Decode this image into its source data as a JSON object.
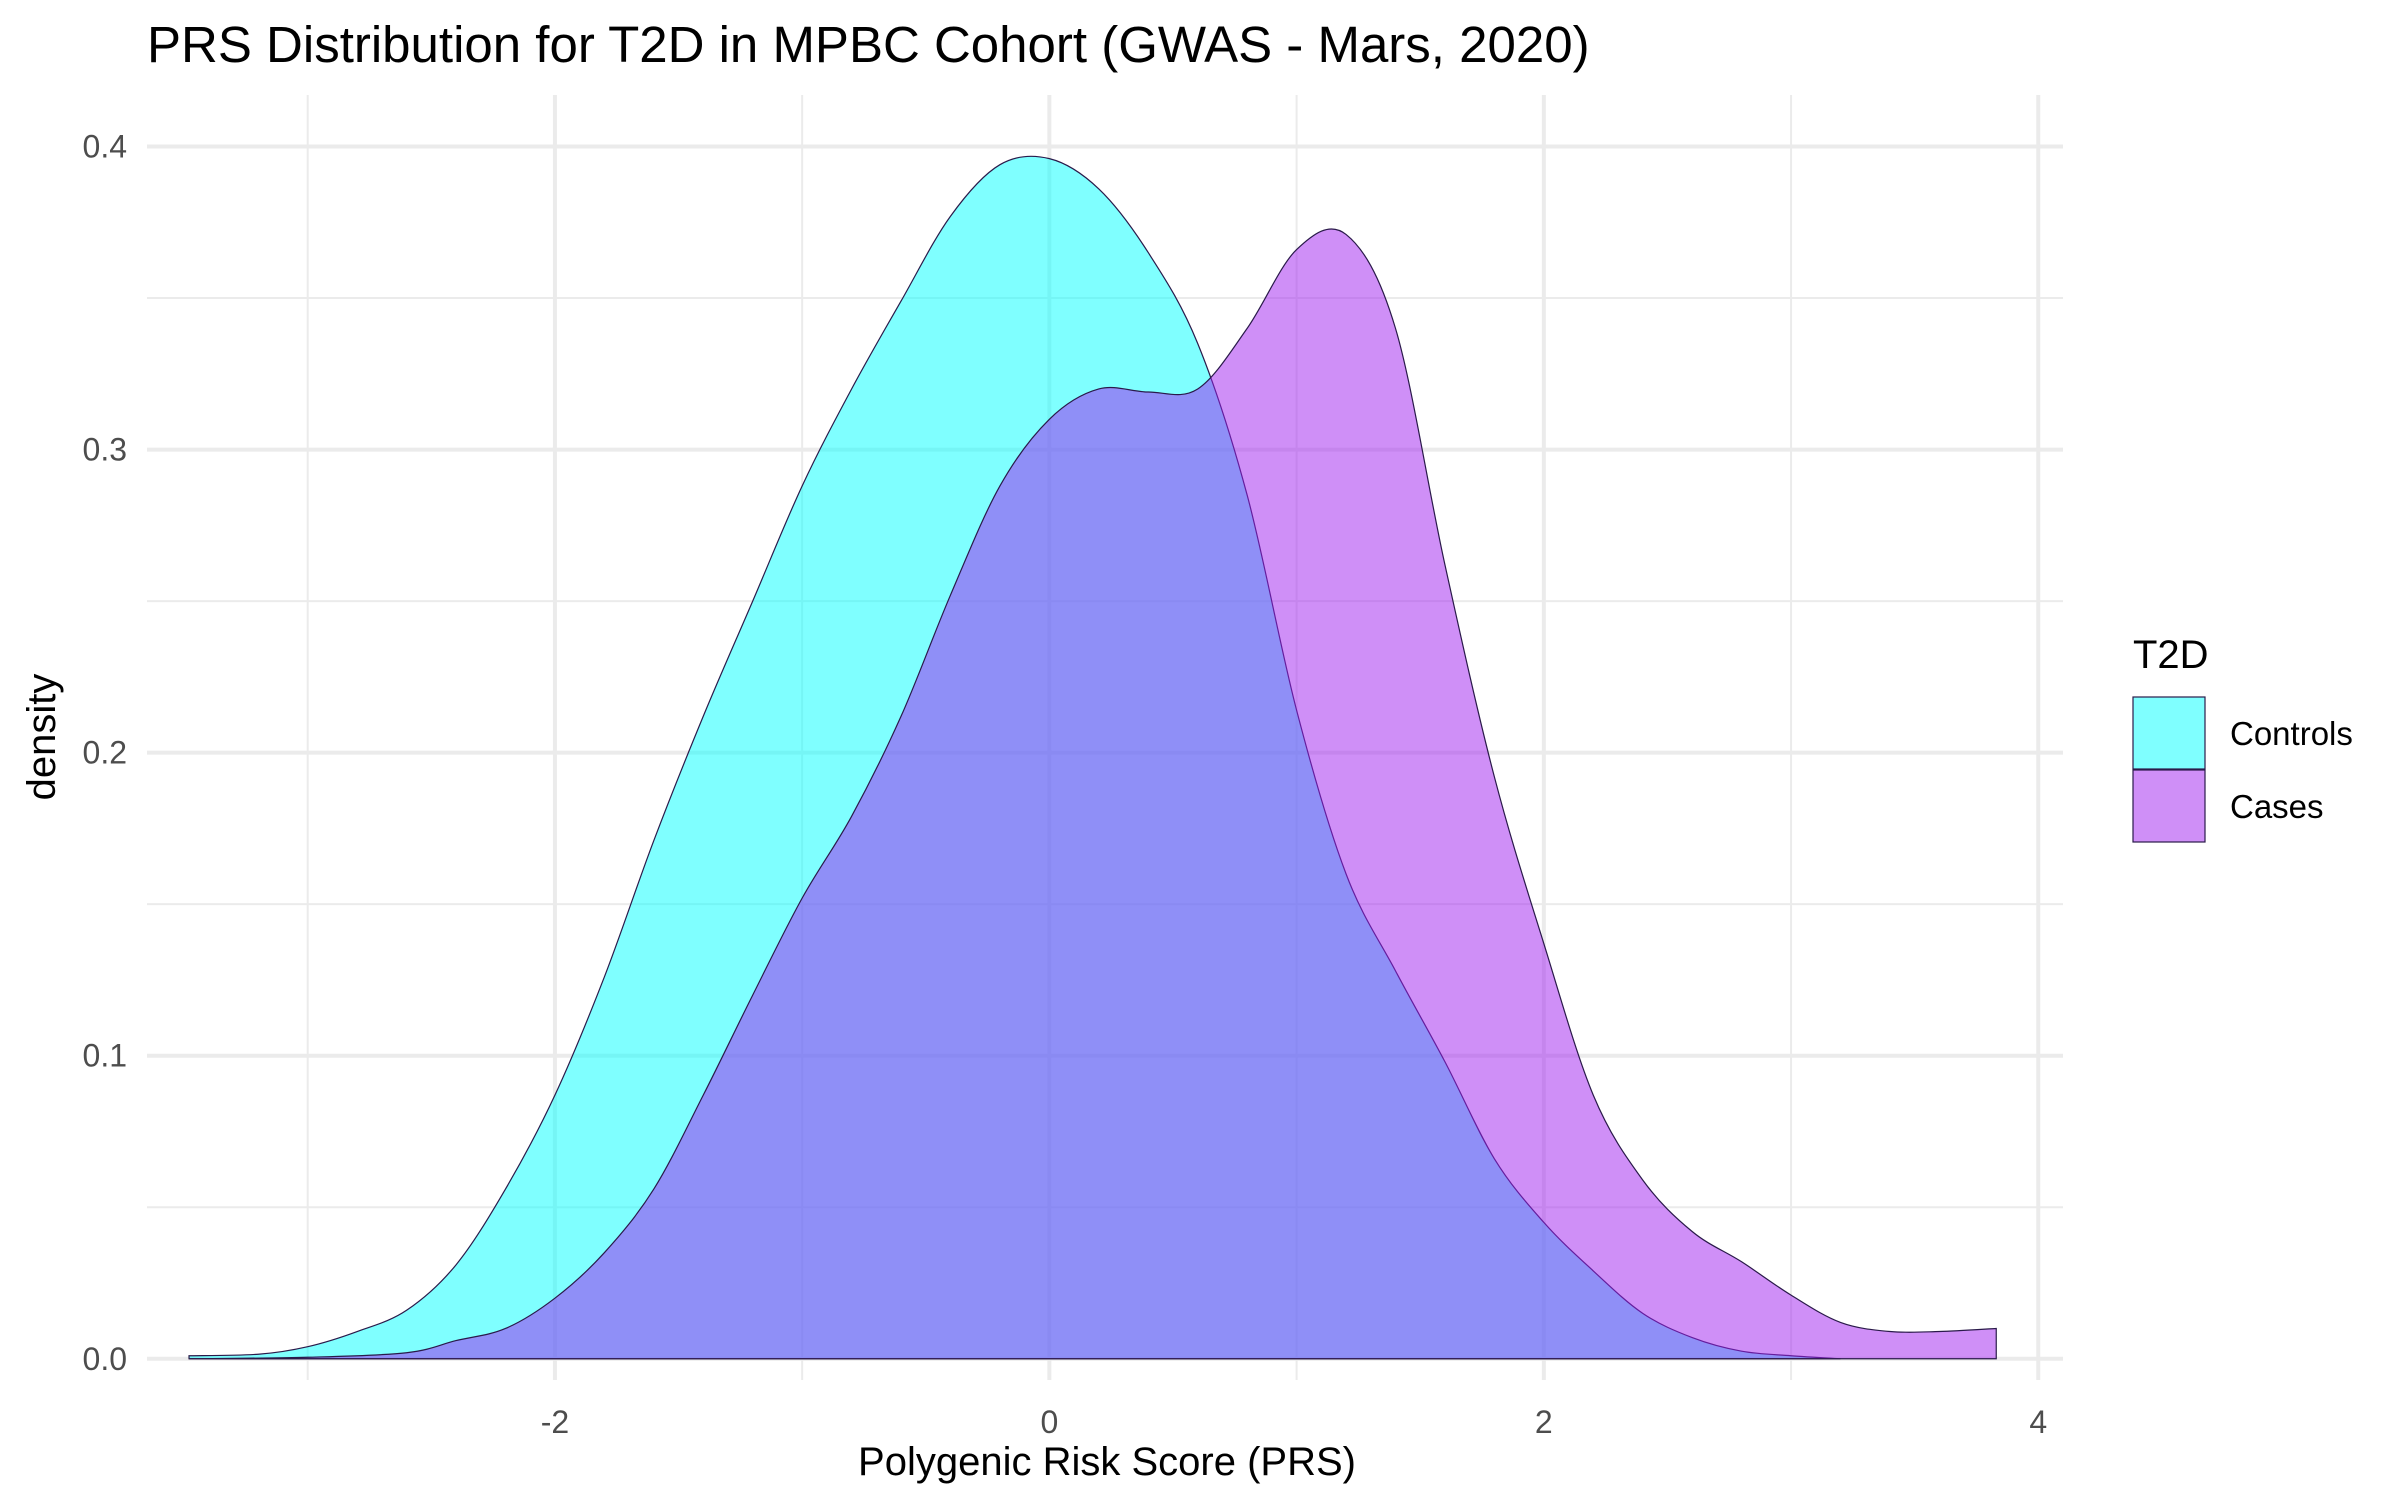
{
  "chart_data": {
    "type": "area",
    "subtype": "density",
    "title": "PRS Distribution for T2D in MPBC Cohort (GWAS - Mars, 2020)",
    "xlabel": "Polygenic Risk Score (PRS)",
    "ylabel": "density",
    "xlim": [
      -3.65,
      4.1
    ],
    "ylim": [
      -0.007,
      0.417
    ],
    "x_ticks": [
      -2,
      0,
      2,
      4
    ],
    "x_tick_labels": [
      "-2",
      "0",
      "2",
      "4"
    ],
    "x_minor_ticks": [
      -3,
      -1,
      1,
      3
    ],
    "y_ticks": [
      0.0,
      0.1,
      0.2,
      0.3,
      0.4
    ],
    "y_tick_labels": [
      "0.0",
      "0.1",
      "0.2",
      "0.3",
      "0.4"
    ],
    "y_minor_ticks": [
      0.05,
      0.15,
      0.25,
      0.35
    ],
    "grid": true,
    "legend": {
      "title": "T2D",
      "position": "right"
    },
    "series": [
      {
        "name": "Controls",
        "color": "#00FFFF",
        "x": [
          -3.48,
          -3.2,
          -3.0,
          -2.8,
          -2.6,
          -2.4,
          -2.2,
          -2.0,
          -1.8,
          -1.6,
          -1.4,
          -1.2,
          -1.0,
          -0.8,
          -0.6,
          -0.4,
          -0.2,
          0.0,
          0.2,
          0.4,
          0.6,
          0.8,
          1.0,
          1.2,
          1.4,
          1.6,
          1.8,
          2.0,
          2.2,
          2.4,
          2.6,
          2.8,
          3.0,
          3.2
        ],
        "y": [
          0.001,
          0.0015,
          0.004,
          0.009,
          0.016,
          0.031,
          0.056,
          0.087,
          0.126,
          0.171,
          0.212,
          0.25,
          0.288,
          0.32,
          0.349,
          0.377,
          0.394,
          0.396,
          0.386,
          0.365,
          0.335,
          0.285,
          0.214,
          0.16,
          0.128,
          0.098,
          0.066,
          0.045,
          0.029,
          0.015,
          0.007,
          0.0025,
          0.001,
          0.0
        ]
      },
      {
        "name": "Cases",
        "color": "#A020F0",
        "x": [
          -3.48,
          -3.0,
          -2.6,
          -2.4,
          -2.2,
          -2.0,
          -1.8,
          -1.6,
          -1.4,
          -1.2,
          -1.0,
          -0.8,
          -0.6,
          -0.4,
          -0.2,
          0.0,
          0.2,
          0.4,
          0.6,
          0.8,
          1.0,
          1.2,
          1.4,
          1.6,
          1.8,
          2.0,
          2.2,
          2.4,
          2.6,
          2.8,
          3.0,
          3.2,
          3.4,
          3.6,
          3.83
        ],
        "y": [
          0.0,
          0.0005,
          0.002,
          0.006,
          0.01,
          0.02,
          0.035,
          0.056,
          0.087,
          0.12,
          0.152,
          0.179,
          0.212,
          0.252,
          0.288,
          0.31,
          0.32,
          0.319,
          0.32,
          0.34,
          0.366,
          0.371,
          0.34,
          0.262,
          0.192,
          0.137,
          0.087,
          0.059,
          0.042,
          0.032,
          0.021,
          0.012,
          0.009,
          0.009,
          0.01
        ]
      }
    ]
  }
}
